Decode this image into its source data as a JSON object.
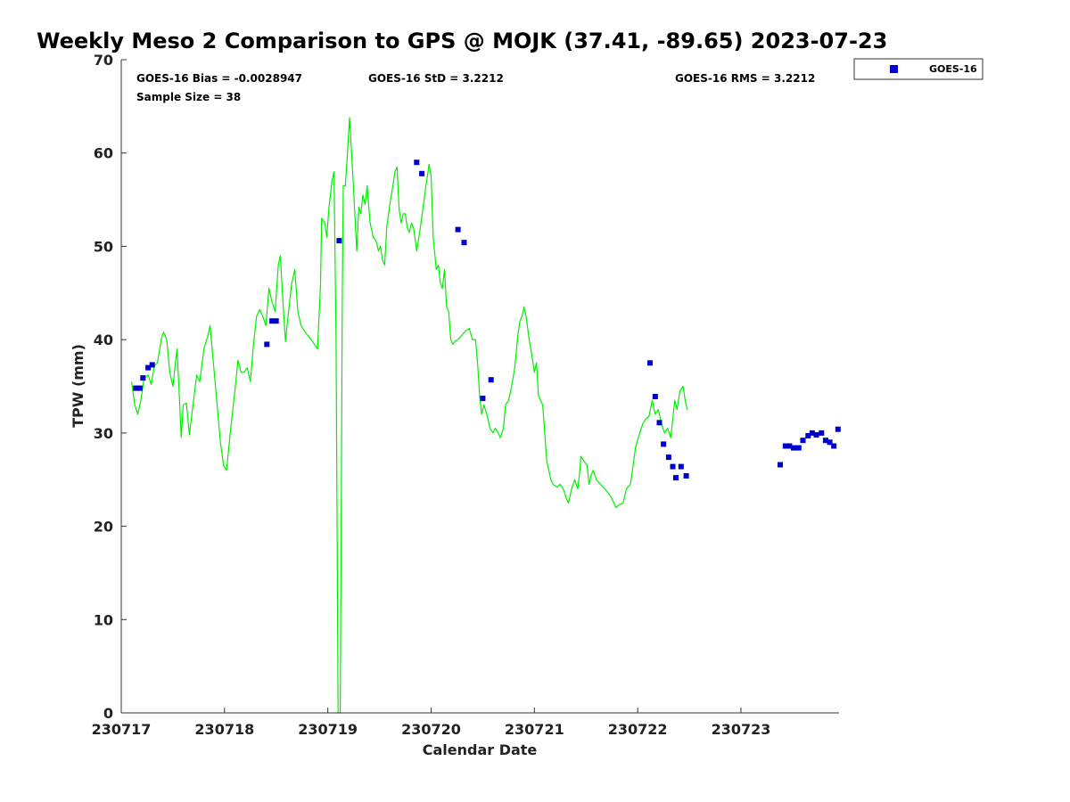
{
  "chart_data": {
    "type": "line",
    "title": "Weekly Meso 2 Comparison to GPS @ MOJK (37.41, -89.65) 2023-07-23",
    "xlabel": "Calendar Date",
    "ylabel": "TPW (mm)",
    "ylim": [
      0,
      70
    ],
    "xlim": [
      230717.0,
      230723.95
    ],
    "x_ticks": [
      {
        "value": 230717,
        "label": "230717"
      },
      {
        "value": 230718,
        "label": "230718"
      },
      {
        "value": 230719,
        "label": "230719"
      },
      {
        "value": 230720,
        "label": "230720"
      },
      {
        "value": 230721,
        "label": "230721"
      },
      {
        "value": 230722,
        "label": "230722"
      },
      {
        "value": 230723,
        "label": "230723"
      }
    ],
    "y_ticks": [
      {
        "value": 0,
        "label": "0"
      },
      {
        "value": 10,
        "label": "10"
      },
      {
        "value": 20,
        "label": "20"
      },
      {
        "value": 30,
        "label": "30"
      },
      {
        "value": 40,
        "label": "40"
      },
      {
        "value": 50,
        "label": "50"
      },
      {
        "value": 60,
        "label": "60"
      },
      {
        "value": 70,
        "label": "70"
      }
    ],
    "grid": false,
    "legend_position": "top-right outside",
    "annotations": {
      "bias": "GOES-16 Bias = -0.0028947",
      "std": "GOES-16 StD = 3.2212",
      "rms": "GOES-16 RMS = 3.2212",
      "sample": "Sample Size = 38"
    },
    "series": [
      {
        "kind": "line",
        "color": "#00ee00",
        "points": [
          [
            230717.1,
            35.5
          ],
          [
            230717.13,
            33.0
          ],
          [
            230717.16,
            32.0
          ],
          [
            230717.19,
            33.5
          ],
          [
            230717.22,
            35.8
          ],
          [
            230717.26,
            36.2
          ],
          [
            230717.29,
            35.2
          ],
          [
            230717.32,
            37.2
          ],
          [
            230717.35,
            37.5
          ],
          [
            230717.39,
            40.2
          ],
          [
            230717.41,
            40.8
          ],
          [
            230717.44,
            40.0
          ],
          [
            230717.47,
            36.5
          ],
          [
            230717.5,
            35.0
          ],
          [
            230717.52,
            37.0
          ],
          [
            230717.54,
            39.0
          ],
          [
            230717.56,
            34.5
          ],
          [
            230717.58,
            29.5
          ],
          [
            230717.6,
            33.0
          ],
          [
            230717.63,
            33.2
          ],
          [
            230717.66,
            29.8
          ],
          [
            230717.7,
            33.5
          ],
          [
            230717.73,
            36.2
          ],
          [
            230717.76,
            35.5
          ],
          [
            230717.8,
            39.0
          ],
          [
            230717.84,
            40.5
          ],
          [
            230717.86,
            41.5
          ],
          [
            230717.88,
            39.0
          ],
          [
            230717.92,
            34.0
          ],
          [
            230717.96,
            29.0
          ],
          [
            230717.99,
            26.5
          ],
          [
            230718.02,
            26.0
          ],
          [
            230718.06,
            30.5
          ],
          [
            230718.1,
            34.5
          ],
          [
            230718.13,
            37.8
          ],
          [
            230718.16,
            36.5
          ],
          [
            230718.19,
            36.5
          ],
          [
            230718.22,
            37.0
          ],
          [
            230718.25,
            35.5
          ],
          [
            230718.28,
            39.5
          ],
          [
            230718.31,
            42.5
          ],
          [
            230718.34,
            43.2
          ],
          [
            230718.37,
            42.5
          ],
          [
            230718.4,
            41.5
          ],
          [
            230718.43,
            45.5
          ],
          [
            230718.46,
            44.0
          ],
          [
            230718.49,
            43.0
          ],
          [
            230718.52,
            48.0
          ],
          [
            230718.54,
            49.0
          ],
          [
            230718.56,
            45.0
          ],
          [
            230718.59,
            39.8
          ],
          [
            230718.62,
            43.0
          ],
          [
            230718.65,
            46.0
          ],
          [
            230718.68,
            47.5
          ],
          [
            230718.71,
            43.0
          ],
          [
            230718.74,
            41.5
          ],
          [
            230718.77,
            41.0
          ],
          [
            230718.8,
            40.5
          ],
          [
            230718.84,
            40.0
          ],
          [
            230718.87,
            39.5
          ],
          [
            230718.9,
            39.0
          ],
          [
            230718.93,
            46.0
          ],
          [
            230718.94,
            53.0
          ],
          [
            230718.97,
            52.5
          ],
          [
            230718.99,
            51.0
          ],
          [
            230719.01,
            54.0
          ],
          [
            230719.04,
            57.0
          ],
          [
            230719.06,
            58.0
          ],
          [
            230719.08,
            40.0
          ],
          [
            230719.1,
            0.0
          ],
          [
            230719.12,
            0.0
          ],
          [
            230719.14,
            45.0
          ],
          [
            230719.15,
            56.5
          ],
          [
            230719.17,
            56.5
          ],
          [
            230719.19,
            60.0
          ],
          [
            230719.21,
            63.8
          ],
          [
            230719.23,
            60.0
          ],
          [
            230719.25,
            56.0
          ],
          [
            230719.28,
            49.5
          ],
          [
            230719.3,
            54.2
          ],
          [
            230719.32,
            53.5
          ],
          [
            230719.34,
            55.5
          ],
          [
            230719.36,
            54.5
          ],
          [
            230719.38,
            56.5
          ],
          [
            230719.41,
            52.5
          ],
          [
            230719.44,
            51.0
          ],
          [
            230719.47,
            50.5
          ],
          [
            230719.49,
            49.5
          ],
          [
            230719.51,
            50.0
          ],
          [
            230719.53,
            48.5
          ],
          [
            230719.55,
            48.0
          ],
          [
            230719.57,
            52.0
          ],
          [
            230719.6,
            54.5
          ],
          [
            230719.63,
            56.5
          ],
          [
            230719.65,
            58.0
          ],
          [
            230719.67,
            58.5
          ],
          [
            230719.69,
            54.0
          ],
          [
            230719.71,
            52.5
          ],
          [
            230719.73,
            53.5
          ],
          [
            230719.75,
            53.5
          ],
          [
            230719.77,
            52.0
          ],
          [
            230719.79,
            51.5
          ],
          [
            230719.81,
            52.5
          ],
          [
            230719.83,
            52.0
          ],
          [
            230719.86,
            49.5
          ],
          [
            230719.89,
            51.5
          ],
          [
            230719.92,
            54.0
          ],
          [
            230719.95,
            56.5
          ],
          [
            230719.98,
            58.8
          ],
          [
            230720.0,
            57.5
          ],
          [
            230720.02,
            51.0
          ],
          [
            230720.05,
            47.5
          ],
          [
            230720.07,
            48.0
          ],
          [
            230720.09,
            46.0
          ],
          [
            230720.11,
            45.5
          ],
          [
            230720.13,
            47.5
          ],
          [
            230720.15,
            43.5
          ],
          [
            230720.17,
            43.0
          ],
          [
            230720.19,
            40.0
          ],
          [
            230720.21,
            39.5
          ],
          [
            230720.23,
            39.8
          ],
          [
            230720.26,
            40.0
          ],
          [
            230720.3,
            40.5
          ],
          [
            230720.34,
            41.0
          ],
          [
            230720.37,
            41.2
          ],
          [
            230720.4,
            40.0
          ],
          [
            230720.43,
            40.0
          ],
          [
            230720.45,
            37.5
          ],
          [
            230720.47,
            34.0
          ],
          [
            230720.49,
            32.0
          ],
          [
            230720.51,
            33.0
          ],
          [
            230720.54,
            32.0
          ],
          [
            230720.57,
            30.5
          ],
          [
            230720.6,
            30.0
          ],
          [
            230720.62,
            30.5
          ],
          [
            230720.65,
            30.0
          ],
          [
            230720.67,
            29.5
          ],
          [
            230720.7,
            30.5
          ],
          [
            230720.72,
            33.0
          ],
          [
            230720.75,
            33.5
          ],
          [
            230720.78,
            35.0
          ],
          [
            230720.81,
            37.0
          ],
          [
            230720.84,
            40.5
          ],
          [
            230720.86,
            42.0
          ],
          [
            230720.88,
            42.5
          ],
          [
            230720.9,
            43.5
          ],
          [
            230720.92,
            42.5
          ],
          [
            230720.95,
            40.0
          ],
          [
            230720.98,
            38.0
          ],
          [
            230721.0,
            36.5
          ],
          [
            230721.02,
            37.5
          ],
          [
            230721.04,
            34.0
          ],
          [
            230721.06,
            33.5
          ],
          [
            230721.08,
            33.0
          ],
          [
            230721.1,
            30.0
          ],
          [
            230721.12,
            27.0
          ],
          [
            230721.14,
            26.0
          ],
          [
            230721.16,
            25.0
          ],
          [
            230721.18,
            24.5
          ],
          [
            230721.22,
            24.2
          ],
          [
            230721.25,
            24.5
          ],
          [
            230721.28,
            24.0
          ],
          [
            230721.31,
            23.0
          ],
          [
            230721.33,
            22.5
          ],
          [
            230721.36,
            24.0
          ],
          [
            230721.39,
            25.0
          ],
          [
            230721.42,
            24.0
          ],
          [
            230721.44,
            26.0
          ],
          [
            230721.45,
            27.5
          ],
          [
            230721.48,
            27.0
          ],
          [
            230721.51,
            26.5
          ],
          [
            230721.53,
            24.5
          ],
          [
            230721.55,
            25.5
          ],
          [
            230721.57,
            26.0
          ],
          [
            230721.6,
            25.0
          ],
          [
            230721.64,
            24.5
          ],
          [
            230721.68,
            24.0
          ],
          [
            230721.72,
            23.5
          ],
          [
            230721.75,
            23.0
          ],
          [
            230721.77,
            22.5
          ],
          [
            230721.79,
            22.0
          ],
          [
            230721.82,
            22.3
          ],
          [
            230721.86,
            22.5
          ],
          [
            230721.89,
            24.0
          ],
          [
            230721.93,
            24.5
          ],
          [
            230721.95,
            26.0
          ],
          [
            230721.98,
            28.5
          ],
          [
            230722.02,
            30.0
          ],
          [
            230722.05,
            31.0
          ],
          [
            230722.08,
            31.5
          ],
          [
            230722.11,
            31.8
          ],
          [
            230722.14,
            33.5
          ],
          [
            230722.17,
            32.0
          ],
          [
            230722.2,
            32.5
          ],
          [
            230722.23,
            31.0
          ],
          [
            230722.26,
            30.0
          ],
          [
            230722.29,
            30.5
          ],
          [
            230722.32,
            29.5
          ],
          [
            230722.34,
            31.5
          ],
          [
            230722.36,
            33.5
          ],
          [
            230722.38,
            32.5
          ],
          [
            230722.41,
            34.5
          ],
          [
            230722.44,
            35.0
          ],
          [
            230722.46,
            33.5
          ],
          [
            230722.48,
            32.5
          ]
        ]
      },
      {
        "kind": "scatter",
        "name": "GOES-16",
        "color": "#0000cc",
        "marker": "square",
        "points": [
          [
            230717.14,
            34.8
          ],
          [
            230717.18,
            34.8
          ],
          [
            230717.21,
            35.9
          ],
          [
            230717.26,
            37.0
          ],
          [
            230717.3,
            37.3
          ],
          [
            230718.41,
            39.5
          ],
          [
            230718.46,
            42.0
          ],
          [
            230718.5,
            42.0
          ],
          [
            230719.11,
            50.6
          ],
          [
            230719.86,
            59.0
          ],
          [
            230719.91,
            57.8
          ],
          [
            230720.26,
            51.8
          ],
          [
            230720.32,
            50.4
          ],
          [
            230720.5,
            33.7
          ],
          [
            230720.58,
            35.7
          ],
          [
            230722.12,
            37.5
          ],
          [
            230722.17,
            33.9
          ],
          [
            230722.21,
            31.1
          ],
          [
            230722.25,
            28.8
          ],
          [
            230722.3,
            27.4
          ],
          [
            230722.34,
            26.4
          ],
          [
            230722.37,
            25.2
          ],
          [
            230722.42,
            26.4
          ],
          [
            230722.47,
            25.4
          ],
          [
            230723.38,
            26.6
          ],
          [
            230723.43,
            28.6
          ],
          [
            230723.47,
            28.6
          ],
          [
            230723.51,
            28.4
          ],
          [
            230723.56,
            28.4
          ],
          [
            230723.6,
            29.2
          ],
          [
            230723.65,
            29.7
          ],
          [
            230723.69,
            30.0
          ],
          [
            230723.73,
            29.8
          ],
          [
            230723.78,
            30.0
          ],
          [
            230723.82,
            29.2
          ],
          [
            230723.86,
            29.0
          ],
          [
            230723.9,
            28.6
          ],
          [
            230723.94,
            30.4
          ]
        ]
      }
    ]
  }
}
